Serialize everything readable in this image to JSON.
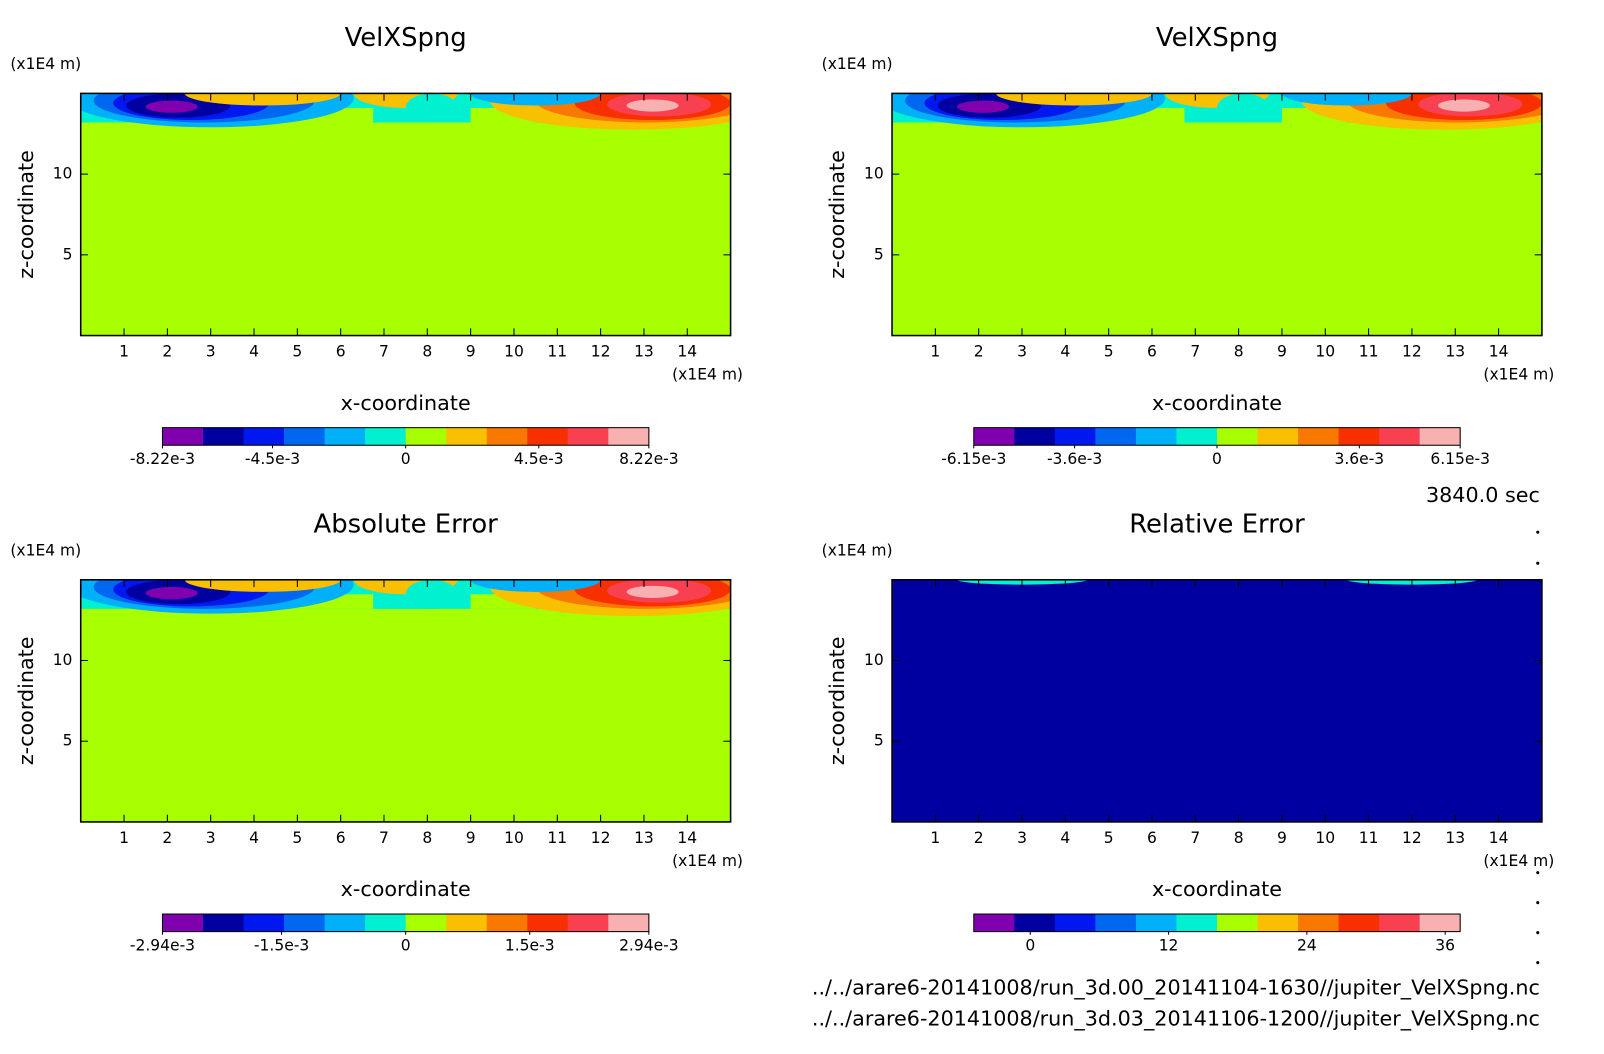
{
  "chart_data": [
    {
      "type": "contour",
      "title": "VelXSpng",
      "xlabel": "x-coordinate",
      "ylabel": "z-coordinate",
      "xunit": "(x1E4 m)",
      "yunit": "(x1E4 m)",
      "xlim": [
        0,
        15
      ],
      "ylim": [
        0,
        15
      ],
      "xticks": [
        1,
        2,
        3,
        4,
        5,
        6,
        7,
        8,
        9,
        10,
        11,
        12,
        13,
        14
      ],
      "yticks": [
        5,
        10
      ],
      "colorbar": {
        "lim": [
          -0.00822,
          0.00822
        ],
        "colors": [
          "#8000b0",
          "#0000a0",
          "#0018f0",
          "#0068f0",
          "#00b0f8",
          "#00f0d0",
          "#a8ff00",
          "#f8c000",
          "#f87800",
          "#f83000",
          "#f84050",
          "#f8b0b0"
        ],
        "ticks": [
          {
            "value": -0.00822,
            "label": "-8.22e-3"
          },
          {
            "value": -0.0045,
            "label": "-4.5e-3"
          },
          0,
          {
            "value": 0.0045,
            "label": "4.5e-3"
          },
          {
            "value": 0.00822,
            "label": "8.22e-3"
          }
        ]
      }
    },
    {
      "type": "contour",
      "title": "VelXSpng",
      "xlabel": "x-coordinate",
      "ylabel": "z-coordinate",
      "xunit": "(x1E4 m)",
      "yunit": "(x1E4 m)",
      "xlim": [
        0,
        15
      ],
      "ylim": [
        0,
        15
      ],
      "xticks": [
        1,
        2,
        3,
        4,
        5,
        6,
        7,
        8,
        9,
        10,
        11,
        12,
        13,
        14
      ],
      "yticks": [
        5,
        10
      ],
      "colorbar": {
        "lim": [
          -0.00615,
          0.00615
        ],
        "colors": [
          "#8000b0",
          "#0000a0",
          "#0018f0",
          "#0068f0",
          "#00b0f8",
          "#00f0d0",
          "#a8ff00",
          "#f8c000",
          "#f87800",
          "#f83000",
          "#f84050",
          "#f8b0b0"
        ],
        "ticks": [
          {
            "value": -0.00615,
            "label": "-6.15e-3"
          },
          {
            "value": -0.0036,
            "label": "-3.6e-3"
          },
          0,
          {
            "value": 0.0036,
            "label": "3.6e-3"
          },
          {
            "value": 0.00615,
            "label": "6.15e-3"
          }
        ]
      }
    },
    {
      "type": "contour",
      "title": "Absolute Error",
      "xlabel": "x-coordinate",
      "ylabel": "z-coordinate",
      "xunit": "(x1E4 m)",
      "yunit": "(x1E4 m)",
      "xlim": [
        0,
        15
      ],
      "ylim": [
        0,
        15
      ],
      "xticks": [
        1,
        2,
        3,
        4,
        5,
        6,
        7,
        8,
        9,
        10,
        11,
        12,
        13,
        14
      ],
      "yticks": [
        5,
        10
      ],
      "colorbar": {
        "lim": [
          -0.00294,
          0.00294
        ],
        "colors": [
          "#8000b0",
          "#0000a0",
          "#0018f0",
          "#0068f0",
          "#00b0f8",
          "#00f0d0",
          "#a8ff00",
          "#f8c000",
          "#f87800",
          "#f83000",
          "#f84050",
          "#f8b0b0"
        ],
        "ticks": [
          {
            "value": -0.00294,
            "label": "-2.94e-3"
          },
          {
            "value": -0.0015,
            "label": "-1.5e-3"
          },
          0,
          {
            "value": 0.0015,
            "label": "1.5e-3"
          },
          {
            "value": 0.00294,
            "label": "2.94e-3"
          }
        ]
      }
    },
    {
      "type": "contour",
      "title": "Relative Error",
      "xlabel": "x-coordinate",
      "ylabel": "z-coordinate",
      "xunit": "(x1E4 m)",
      "yunit": "(x1E4 m)",
      "xlim": [
        0,
        15
      ],
      "ylim": [
        0,
        15
      ],
      "xticks": [
        1,
        2,
        3,
        4,
        5,
        6,
        7,
        8,
        9,
        10,
        11,
        12,
        13,
        14
      ],
      "yticks": [
        5,
        10
      ],
      "colorbar": {
        "lim": [
          -4.9,
          37.3
        ],
        "colors": [
          "#8000b0",
          "#0000a0",
          "#0018f0",
          "#0068f0",
          "#00b0f8",
          "#00f0d0",
          "#a8ff00",
          "#f8c000",
          "#f87800",
          "#f83000",
          "#f84050",
          "#f8b0b0"
        ],
        "ticks": [
          0,
          12,
          24,
          36
        ]
      }
    }
  ],
  "time": "3840.0 sec",
  "files": [
    "../../arare6-20141008/run_3d.00_20141104-1630//jupiter_VelXSpng.nc",
    "../../arare6-20141008/run_3d.03_20141106-1200//jupiter_VelXSpng.nc"
  ]
}
